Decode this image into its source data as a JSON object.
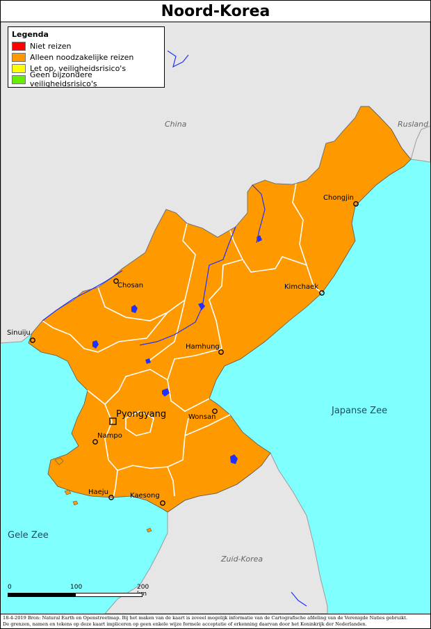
{
  "title": "Noord-Korea",
  "legend": {
    "title": "Legenda",
    "items": [
      {
        "label": "Niet reizen",
        "color": "#ff0000"
      },
      {
        "label": "Alleen noodzakelijke reizen",
        "color": "#ff9900"
      },
      {
        "label": "Let op, veiligheidsrisico's",
        "color": "#ffff00"
      },
      {
        "label": "Geen bijzondere veiligheidsrisico's",
        "color": "#66ee00"
      }
    ]
  },
  "countries": {
    "china": "China",
    "rusland": "Rusland",
    "zuid_korea": "Zuid-Korea"
  },
  "seas": {
    "japanse_zee": "Japanse Zee",
    "gele_zee": "Gele Zee"
  },
  "cities": {
    "chongjin": "Chongjin",
    "chosan": "Chosan",
    "kimchaek": "Kimchaek",
    "sinuiju": "Sinuiju",
    "hamhung": "Hamhung",
    "pyongyang": "Pyongyang",
    "wonsan": "Wonsan",
    "nampo": "Nampo",
    "haeju": "Haeju",
    "kaesong": "Kaesong"
  },
  "scale": {
    "t0": "0",
    "t100": "100",
    "t200": "200 km"
  },
  "footer": {
    "line1": "18-4-2019 Bron: Natural Earth en Openstreetmap. Bij het maken van de kaart is zoveel mogelijk informatie van de Cartografische afdeling van de Verenigde Naties gebruikt.",
    "line2": "De grenzen, namen en tekens op deze kaart impliceren op geen enkele wijze formele acceptatie of erkenning daarvan door het Koninkrijk der Nederlanden."
  },
  "colors": {
    "land": "#e6e6e6",
    "sea": "#80ffff",
    "north_korea": "#ff9900",
    "rivers": "#1f30ff"
  }
}
